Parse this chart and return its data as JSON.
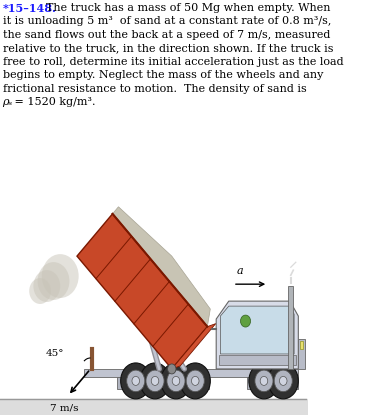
{
  "title_num": "*15–148.",
  "title_rest": "  The truck has a mass of 50 Mg when empty. When",
  "line2": "it is unloading 5 m³  of sand at a constant rate of 0.8 m³/s,",
  "line3": "the sand flows out the back at a speed of 7 m/s, measured",
  "line4": "relative to the truck, in the direction shown. If the truck is",
  "line5": "free to roll, determine its initial acceleration just as the load",
  "line6": "begins to empty. Neglect the mass of the wheels and any",
  "line7": "frictional resistance to motion.  The density of sand is",
  "line8_rho": "ρₛ",
  "line8_rest": " = 1520 kg/m³.",
  "angle_label": "45°",
  "speed_label": "7 m/s",
  "accel_label": "a",
  "bg_color": "#ffffff",
  "text_color": "#000000",
  "title_color": "#1a1aff",
  "dump_color": "#c84828",
  "dump_dark": "#7a1800",
  "dump_light": "#e06040",
  "truck_light": "#d8dce8",
  "truck_mid": "#b8bcc8",
  "truck_dark": "#888898",
  "wheel_dark": "#303030",
  "wheel_mid": "#585858",
  "wheel_hub": "#909090",
  "sand_gray": "#b8b4a8",
  "ground_color": "#aaaaaa",
  "chassis_color": "#c0c4d0",
  "strut_color": "#909098"
}
